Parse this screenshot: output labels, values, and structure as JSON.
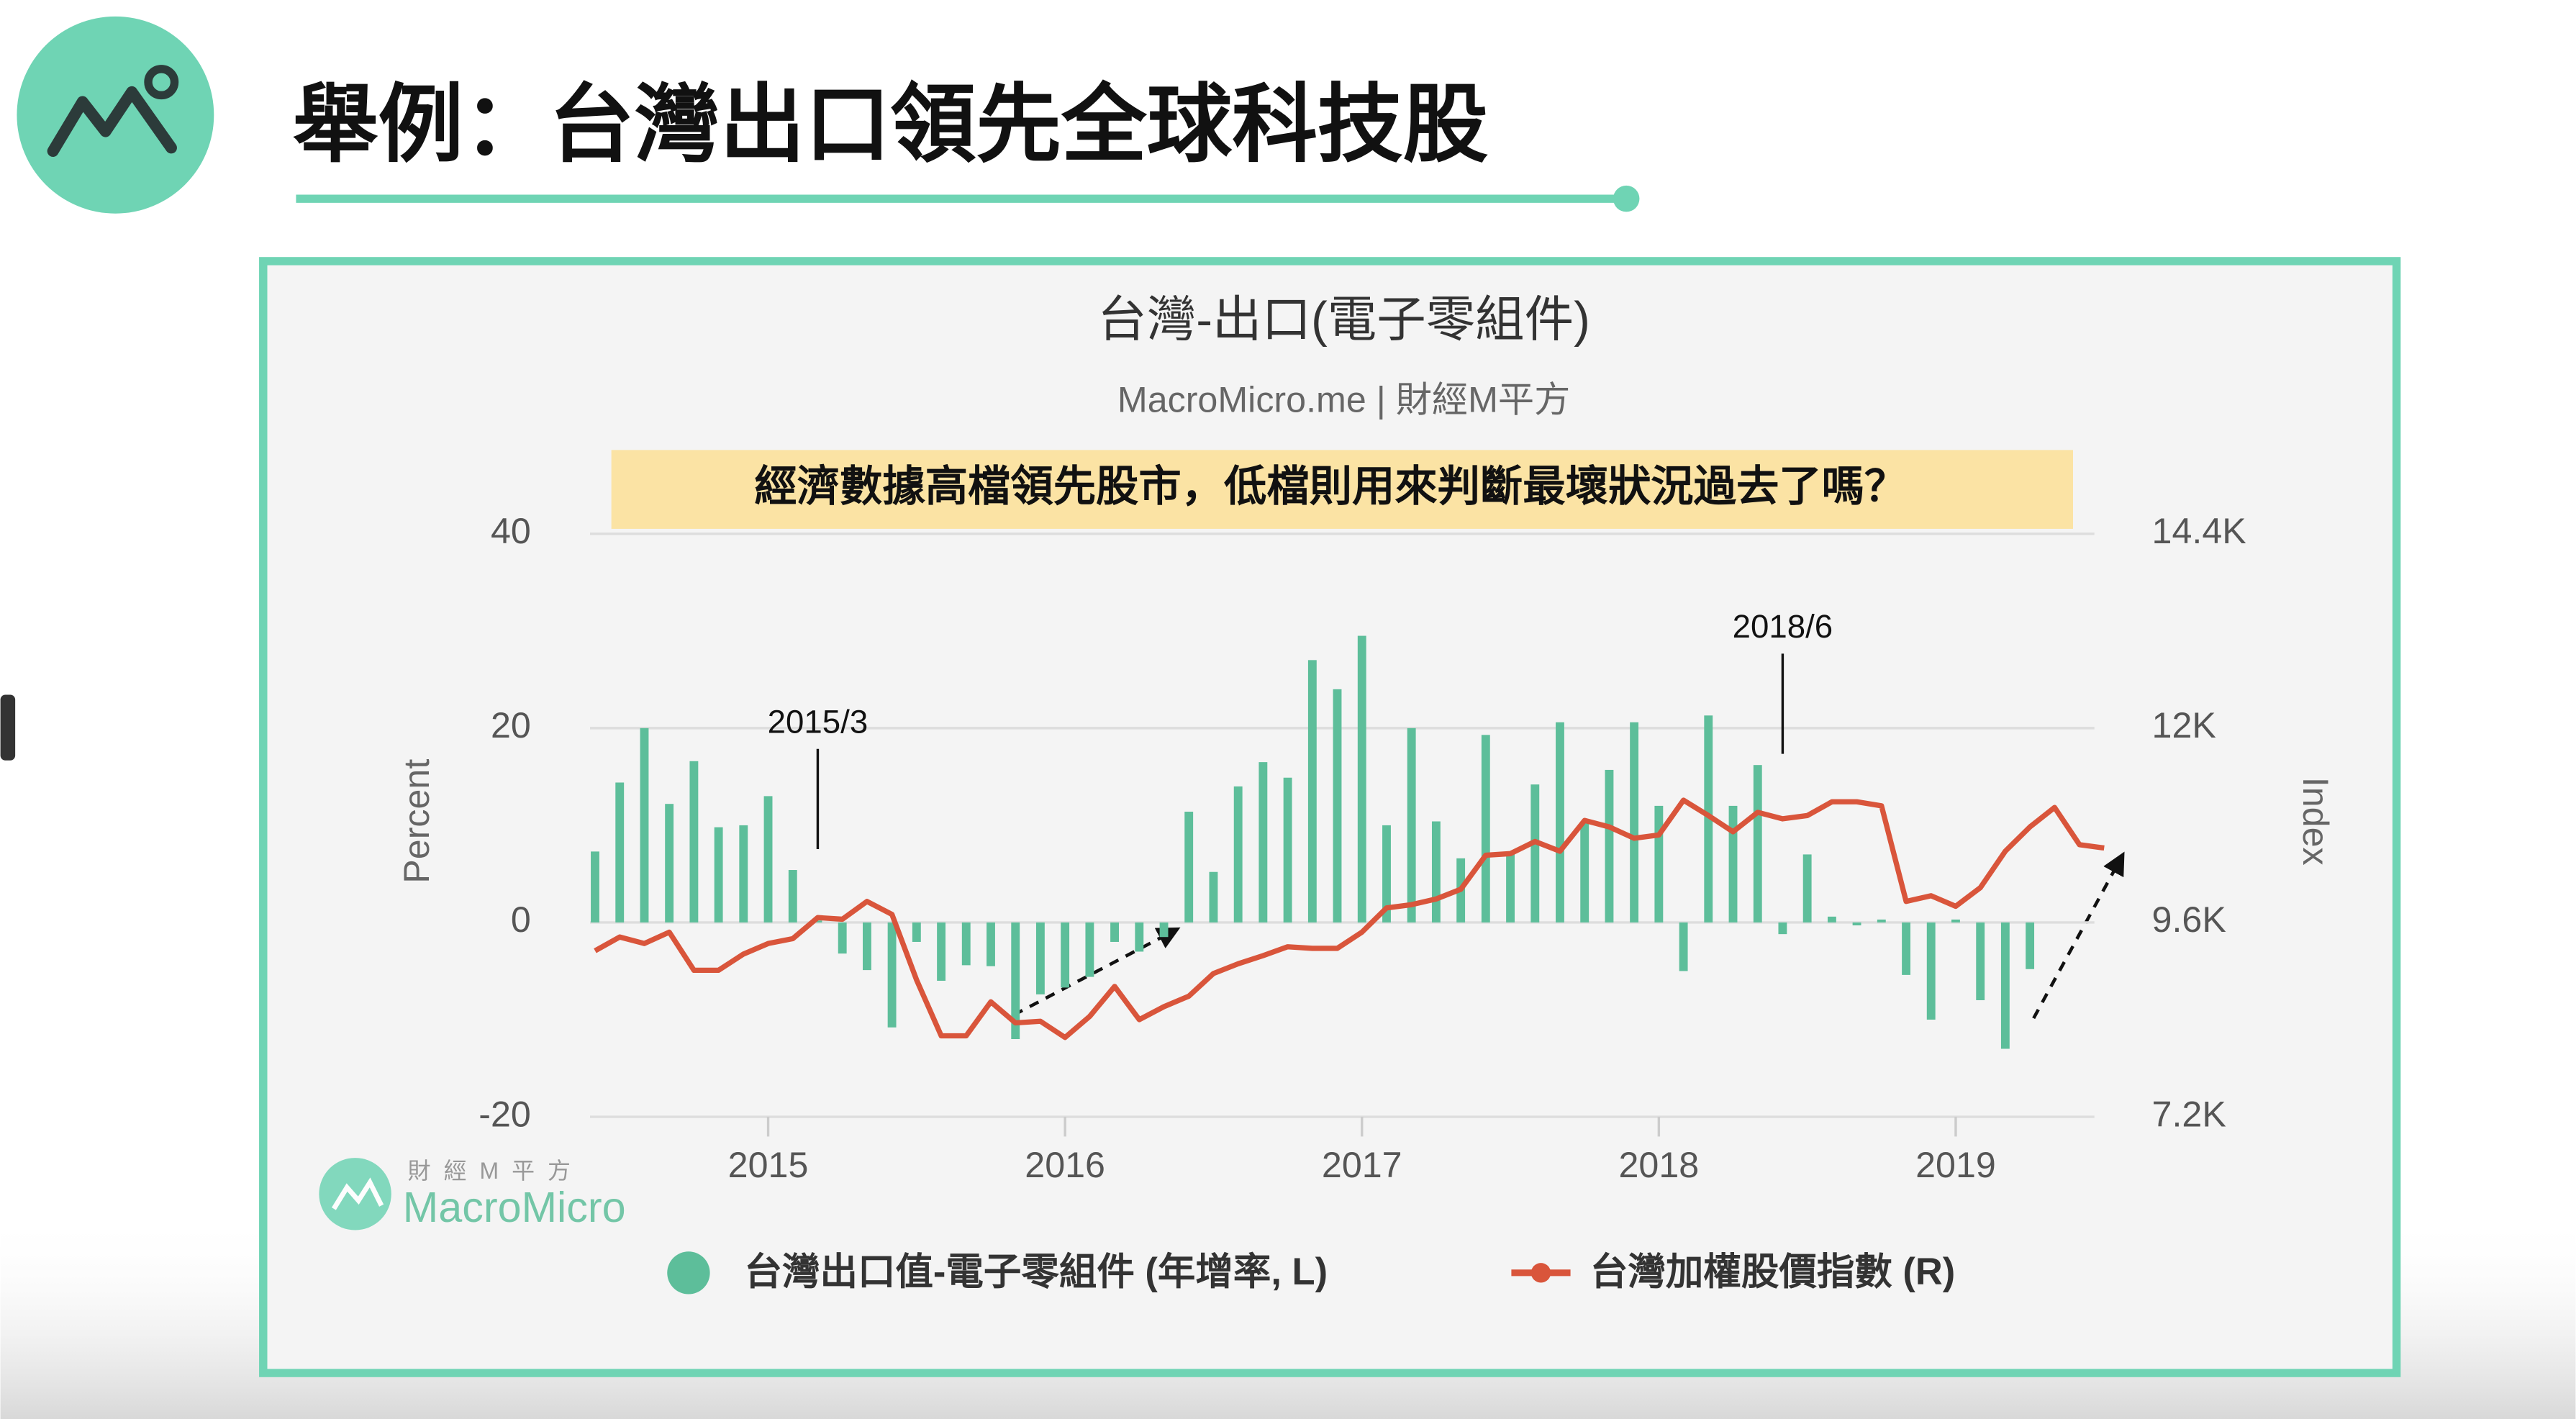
{
  "header": {
    "title": "舉例：台灣出口領先全球科技股"
  },
  "watermark": {
    "line1": "財 經 M 平 方",
    "line2": "MacroMicro"
  },
  "chart_data": {
    "type": "bar-line",
    "title": "台灣-出口(電子零組件)",
    "subtitle": "MacroMicro.me | 財經M平方",
    "highlight": "經濟數據高檔領先股市，低檔則用來判斷最壞狀況過去了嗎？",
    "y_label": "Percent",
    "y2_label": "Index",
    "x": [
      2014.417,
      2014.5,
      2014.583,
      2014.667,
      2014.75,
      2014.833,
      2014.917,
      2015.0,
      2015.083,
      2015.167,
      2015.25,
      2015.333,
      2015.417,
      2015.5,
      2015.583,
      2015.667,
      2015.75,
      2015.833,
      2015.917,
      2016.0,
      2016.083,
      2016.167,
      2016.25,
      2016.333,
      2016.417,
      2016.5,
      2016.583,
      2016.667,
      2016.75,
      2016.833,
      2016.917,
      2017.0,
      2017.083,
      2017.167,
      2017.25,
      2017.333,
      2017.417,
      2017.5,
      2017.583,
      2017.667,
      2017.75,
      2017.833,
      2017.917,
      2018.0,
      2018.083,
      2018.167,
      2018.25,
      2018.333,
      2018.417,
      2018.5,
      2018.583,
      2018.667,
      2018.75,
      2018.833,
      2018.917,
      2019.0,
      2019.083,
      2019.167,
      2019.25,
      2019.333,
      2019.417,
      2019.5
    ],
    "xlim": [
      2014.4,
      2019.55
    ],
    "xticks": [
      2015,
      2016,
      2017,
      2018,
      2019
    ],
    "ylim": [
      -20,
      40
    ],
    "yticks": [
      -20,
      0,
      20,
      40
    ],
    "y2lim": [
      7200,
      14400
    ],
    "y2ticks": [
      {
        "value": 7200,
        "label": "7.2K"
      },
      {
        "value": 9600,
        "label": "9.6K"
      },
      {
        "value": 12000,
        "label": "12K"
      },
      {
        "value": 14400,
        "label": "14.4K"
      }
    ],
    "grid": true,
    "legend": "bottom",
    "series": [
      {
        "name": "台灣出口值-電子零組件 (年增率, L)",
        "type": "bar",
        "color": "#5dbe9a",
        "values": [
          7.3,
          14.4,
          20,
          12.2,
          16.6,
          9.8,
          10,
          13,
          5.4,
          0.2,
          -3.2,
          -4.9,
          -10.8,
          -2,
          -6,
          -4.4,
          -4.5,
          -12,
          -7.4,
          -6.7,
          -5.6,
          -2,
          -3,
          -1.5,
          11.4,
          5.2,
          14,
          16.5,
          14.9,
          27,
          24,
          29.5,
          10,
          20,
          10.4,
          6.6,
          19.3,
          7.3,
          14.2,
          20.6,
          10.3,
          15.7,
          20.6,
          12,
          -5,
          21.3,
          12,
          16.2,
          -1.2,
          7,
          0.6,
          -0.3,
          0.3,
          -5.4,
          -10,
          0.3,
          -8,
          -13,
          -4.8,
          null,
          null,
          null
        ]
      },
      {
        "name": "台灣加權股價指數 (R)",
        "type": "line",
        "axis": "y2",
        "color": "#d9553b",
        "values": [
          9250,
          9420,
          9340,
          9480,
          9010,
          9010,
          9210,
          9340,
          9400,
          9660,
          9640,
          9860,
          9700,
          8890,
          8200,
          8200,
          8620,
          8360,
          8380,
          8180,
          8440,
          8810,
          8400,
          8560,
          8690,
          8970,
          9090,
          9190,
          9300,
          9280,
          9280,
          9480,
          9780,
          9820,
          9890,
          10010,
          10430,
          10450,
          10600,
          10480,
          10860,
          10780,
          10640,
          10680,
          11110,
          10920,
          10720,
          10960,
          10880,
          10920,
          11090,
          11090,
          11040,
          9860,
          9930,
          9800,
          10030,
          10480,
          10780,
          11020,
          10560,
          10520
        ]
      }
    ],
    "annotations": [
      {
        "text": "2015/3",
        "x": 2015.167
      },
      {
        "text": "2018/6",
        "x": 2018.417
      }
    ]
  }
}
